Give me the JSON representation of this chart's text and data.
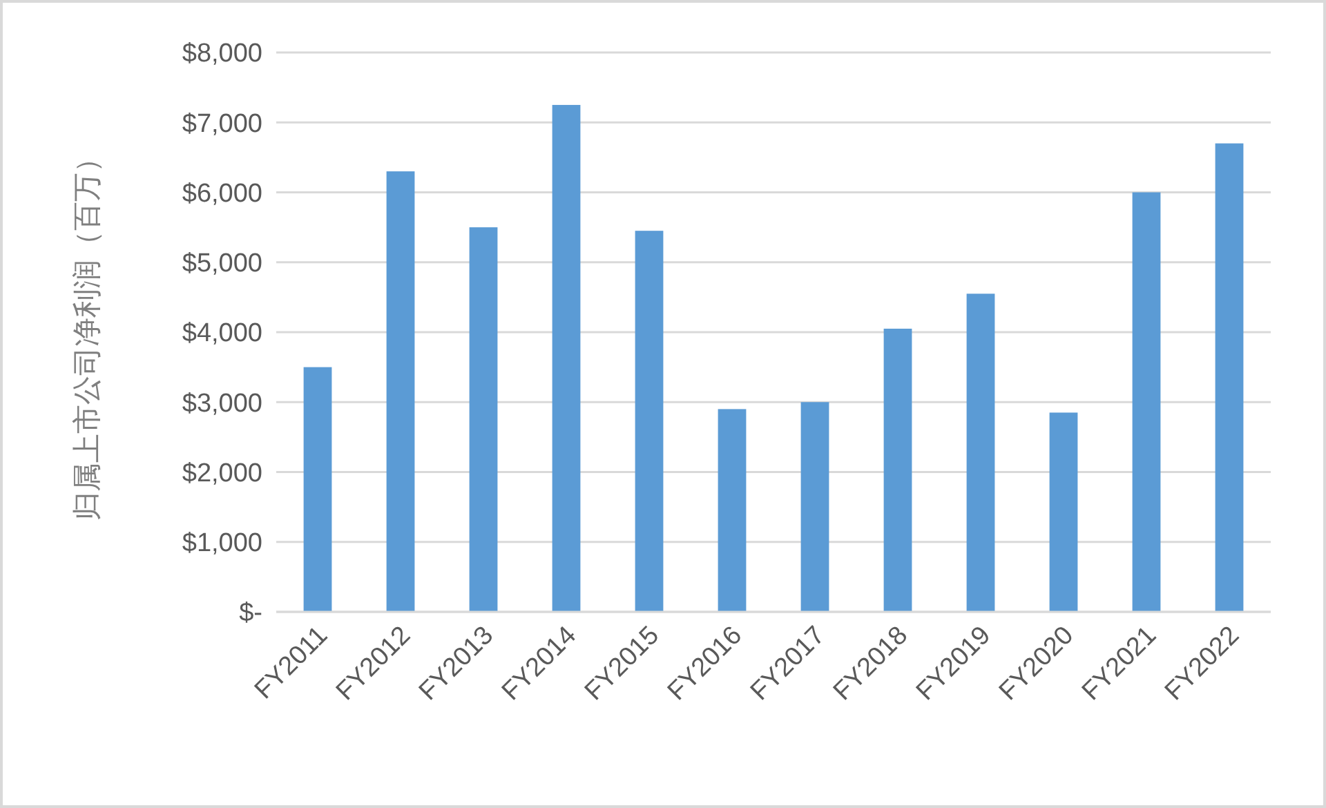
{
  "chart_data": {
    "type": "bar",
    "ylabel": "归属上市公司净利润（百万）",
    "categories": [
      "FY2011",
      "FY2012",
      "FY2013",
      "FY2014",
      "FY2015",
      "FY2016",
      "FY2017",
      "FY2018",
      "FY2019",
      "FY2020",
      "FY2021",
      "FY2022"
    ],
    "values": [
      3500,
      6300,
      5500,
      7250,
      5450,
      2900,
      3000,
      4050,
      4550,
      2850,
      6000,
      6700
    ],
    "color": "#5b9bd5",
    "ylim": [
      0,
      8000
    ],
    "yticks": [
      {
        "value": 0,
        "label": "$-"
      },
      {
        "value": 1000,
        "label": "$1,000"
      },
      {
        "value": 2000,
        "label": "$2,000"
      },
      {
        "value": 3000,
        "label": "$3,000"
      },
      {
        "value": 4000,
        "label": "$4,000"
      },
      {
        "value": 5000,
        "label": "$5,000"
      },
      {
        "value": 6000,
        "label": "$6,000"
      },
      {
        "value": 7000,
        "label": "$7,000"
      },
      {
        "value": 8000,
        "label": "$8,000"
      }
    ],
    "grid": "y"
  }
}
